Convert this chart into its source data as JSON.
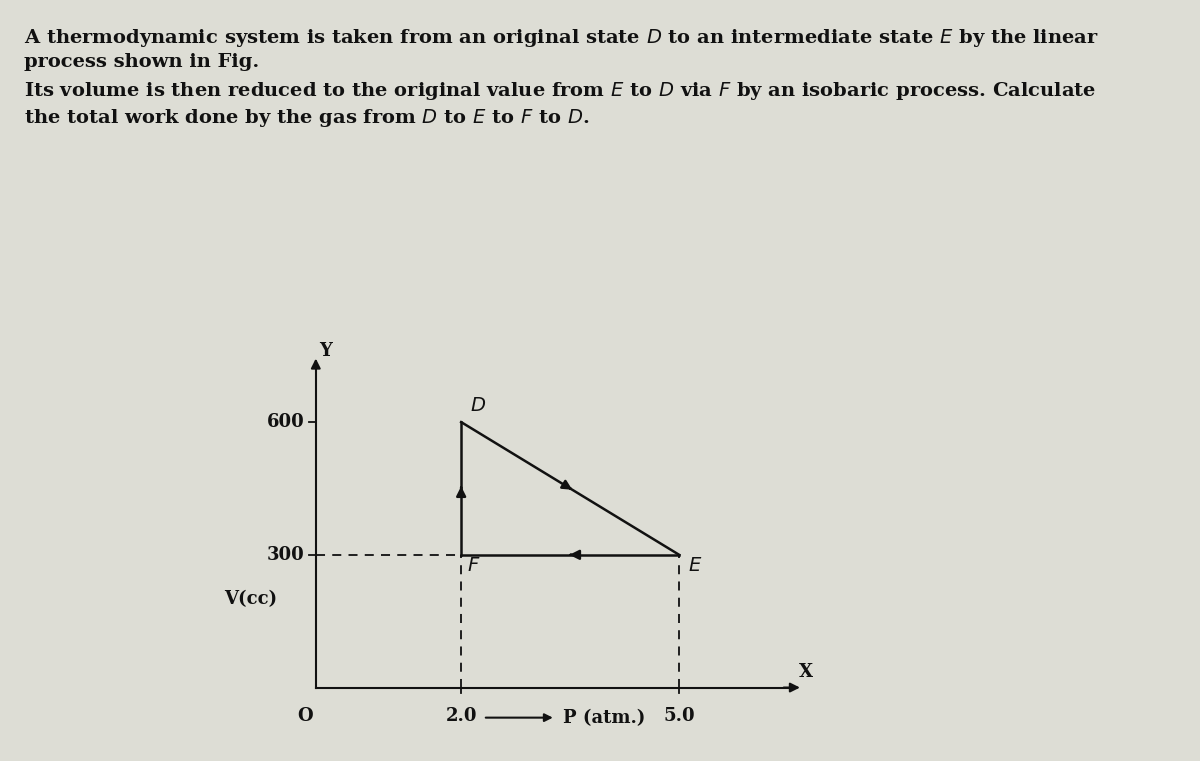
{
  "background_color": "#ddddd5",
  "text_color": "#111111",
  "line1": "A thermodynamic system is taken from an original state $D$ to an intermediate state $E$ by the linear",
  "line2": "process shown in Fig.",
  "line3": "Its volume is then reduced to the original value from $E$ to $D$ via $F$ by an isobaric process. Calculate",
  "line4": "the total work done by the gas from $D$ to $E$ to $F$ to $D$.",
  "points": {
    "D": [
      2.0,
      600
    ],
    "E": [
      5.0,
      300
    ],
    "F": [
      2.0,
      300
    ]
  },
  "xlim": [
    -0.3,
    6.8
  ],
  "ylim": [
    -80,
    780
  ],
  "line_color": "#111111",
  "dashed_color": "#111111",
  "fontsize_text": 14,
  "fontsize_axis": 13,
  "fontsize_label": 14
}
